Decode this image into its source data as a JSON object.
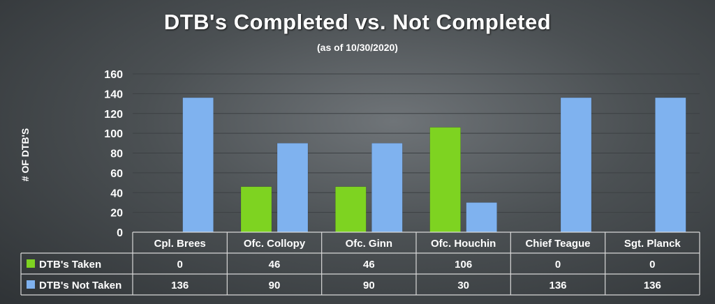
{
  "chart_data": {
    "type": "bar",
    "title": "DTB's Completed vs. Not Completed",
    "subtitle": "(as of 10/30/2020)",
    "ylabel": "# OF DTB'S",
    "xlabel": "",
    "ylim": [
      0,
      160
    ],
    "yticks": [
      0,
      20,
      40,
      60,
      80,
      100,
      120,
      140,
      160
    ],
    "grid": true,
    "legend": "data-table-left",
    "categories": [
      "Cpl. Brees",
      "Ofc. Collopy",
      "Ofc. Ginn",
      "Ofc. Houchin",
      "Chief Teague",
      "Sgt. Planck"
    ],
    "series": [
      {
        "name": "DTB's Taken",
        "color": "#7ed321",
        "values": [
          0,
          46,
          46,
          106,
          0,
          0
        ]
      },
      {
        "name": "DTB's Not Taken",
        "color": "#7fb2ef",
        "values": [
          136,
          90,
          90,
          30,
          136,
          136
        ]
      }
    ]
  }
}
